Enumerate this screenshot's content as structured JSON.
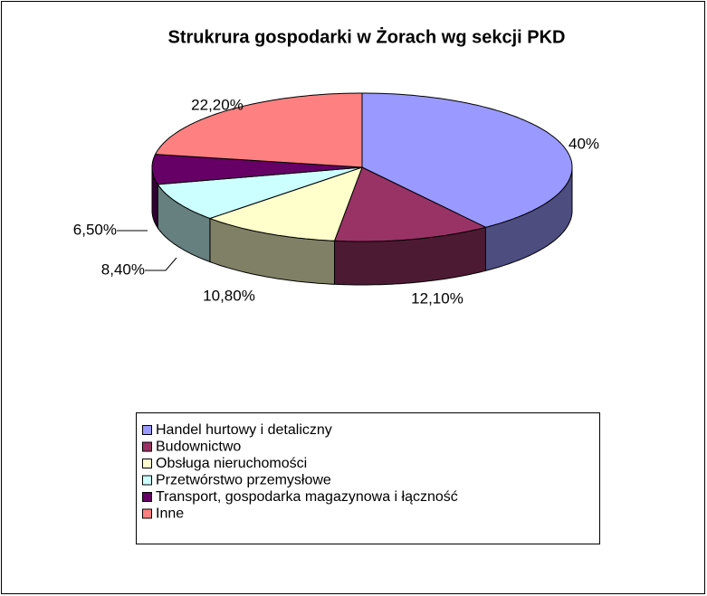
{
  "chart_data": {
    "type": "pie3d",
    "title": "Strukrura gospodarki w Żorach wg sekcji PKD",
    "categories": [
      "Handel hurtowy i detaliczny",
      "Budownictwo",
      "Obsługa nieruchomości",
      "Przetwórstwo przemysłowe",
      "Transport, gospodarka magazynowa i łączność",
      "Inne"
    ],
    "values": [
      40,
      12.1,
      10.8,
      8.4,
      6.5,
      22.2
    ],
    "value_labels": [
      "40%",
      "12,10%",
      "10,80%",
      "8,40%",
      "6,50%",
      "22,20%"
    ],
    "colors": [
      "#9999ff",
      "#993366",
      "#ffffcc",
      "#ccffff",
      "#660066",
      "#ff8080"
    ],
    "legend": "bottom"
  }
}
